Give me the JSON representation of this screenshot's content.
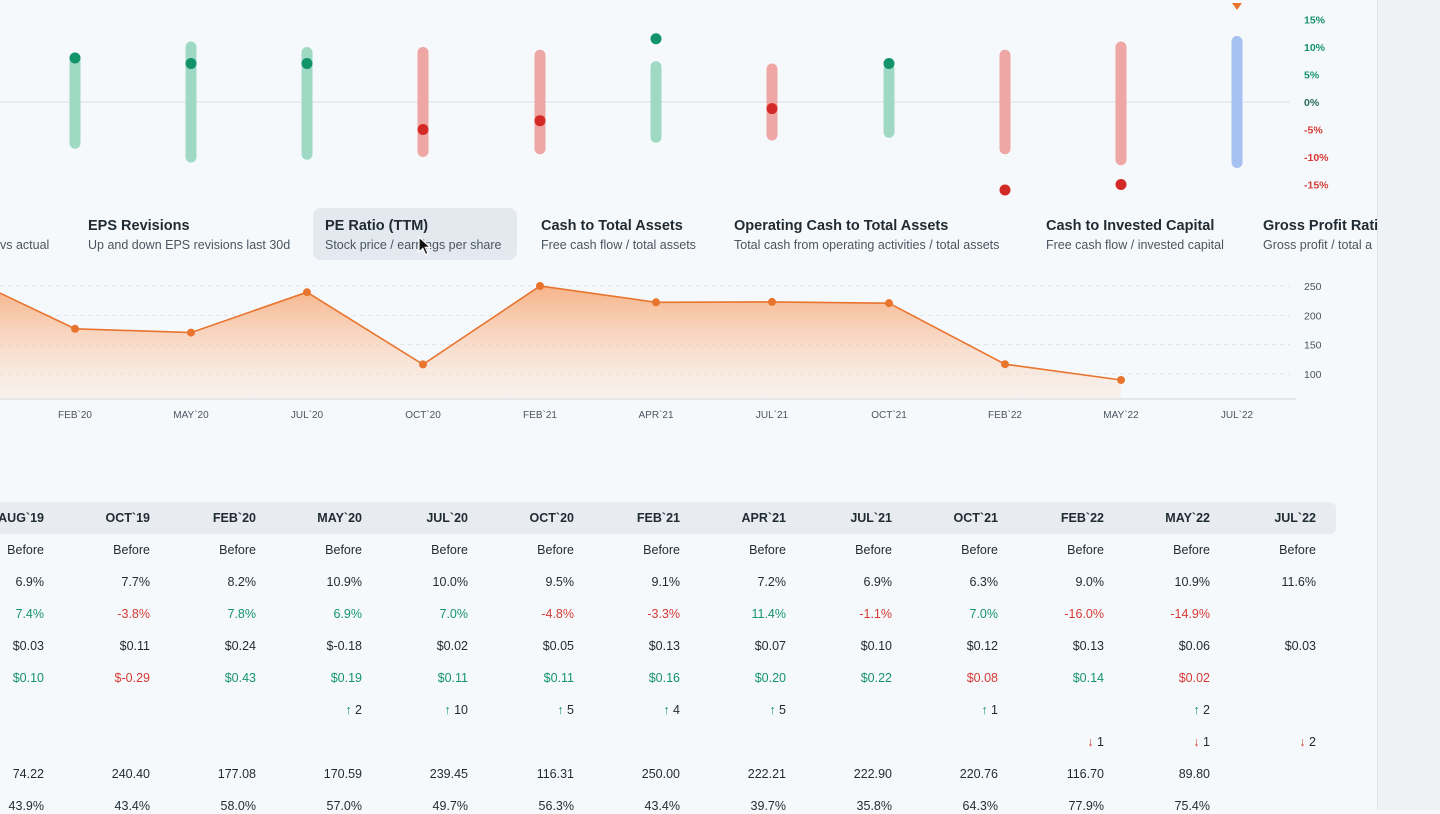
{
  "surprise_chart": {
    "y_ticks": [
      "15%",
      "10%",
      "5%",
      "0%",
      "-5%",
      "-10%",
      "-15%"
    ],
    "y_tick_values": [
      15,
      10,
      5,
      0,
      -5,
      -10,
      -15
    ],
    "bars": [
      {
        "period": "AUG`19",
        "range": [
          -7.5,
          8
        ],
        "actual": 8,
        "color": "green"
      },
      {
        "period": "OCT`19",
        "range": [
          -10,
          10
        ],
        "actual": 7,
        "color": "green"
      },
      {
        "period": "FEB`20",
        "range": [
          -9.5,
          9
        ],
        "actual": 7,
        "color": "green"
      },
      {
        "period": "MAY`20",
        "range": [
          -9,
          9
        ],
        "actual": -5,
        "color": "red"
      },
      {
        "period": "JUL`20",
        "range": [
          -8.5,
          8.5
        ],
        "actual": -3.4,
        "color": "red"
      },
      {
        "period": "OCT`20",
        "range": [
          -6.4,
          6.4
        ],
        "actual": 11.5,
        "color": "green"
      },
      {
        "period": "FEB`21",
        "range": [
          -6,
          6
        ],
        "actual": -1.2,
        "color": "red"
      },
      {
        "period": "APR`21",
        "range": [
          -5.5,
          6
        ],
        "actual": 7,
        "color": "green"
      },
      {
        "period": "JUL`21",
        "range": [
          -8.5,
          8.5
        ],
        "actual": -16,
        "color": "red"
      },
      {
        "period": "OCT`21",
        "range": [
          -10.5,
          10
        ],
        "actual": -15,
        "color": "red"
      },
      {
        "period": "FEB`22",
        "range": [
          -11,
          11
        ],
        "actual": null,
        "color": "blue"
      }
    ],
    "marker_period": "FEB`22"
  },
  "metric_tabs": [
    {
      "title": "",
      "subtitle": "vs actual",
      "active": false
    },
    {
      "title": "EPS Revisions",
      "subtitle": "Up and down EPS revisions last 30d",
      "active": false
    },
    {
      "title": "PE Ratio (TTM)",
      "subtitle": "Stock price / earnings per share",
      "active": true
    },
    {
      "title": "Cash to Total Assets",
      "subtitle": "Free cash flow / total assets",
      "active": false
    },
    {
      "title": "Operating Cash to Total Assets",
      "subtitle": "Total cash from operating activities / total assets",
      "active": false
    },
    {
      "title": "Cash to Invested Capital",
      "subtitle": "Free cash flow / invested capital",
      "active": false
    },
    {
      "title": "Gross Profit Ratio",
      "subtitle": "Gross profit / total a",
      "active": false
    }
  ],
  "chart_data": {
    "type": "area",
    "x": [
      "FEB`20",
      "MAY`20",
      "JUL`20",
      "OCT`20",
      "FEB`21",
      "APR`21",
      "JUL`21",
      "OCT`21",
      "FEB`22",
      "MAY`22",
      "JUL`22"
    ],
    "series": [
      {
        "values": [
          177.08,
          170.59,
          239.45,
          116.31,
          250.0,
          222.21,
          222.9,
          220.76,
          116.7,
          89.8,
          null
        ]
      }
    ],
    "y_ticks": [
      250,
      200,
      150,
      100
    ],
    "ylim": [
      50,
      270
    ],
    "grid": true,
    "color": "#e8742e"
  },
  "table": {
    "columns": [
      "AUG`19",
      "OCT`19",
      "FEB`20",
      "MAY`20",
      "JUL`20",
      "OCT`20",
      "FEB`21",
      "APR`21",
      "JUL`21",
      "OCT`21",
      "FEB`22",
      "MAY`22",
      "JUL`22"
    ],
    "rows": [
      {
        "type": "plain",
        "cells": [
          "Before",
          "Before",
          "Before",
          "Before",
          "Before",
          "Before",
          "Before",
          "Before",
          "Before",
          "Before",
          "Before",
          "Before",
          "Before"
        ]
      },
      {
        "type": "plain",
        "cells": [
          "6.9%",
          "7.7%",
          "8.2%",
          "10.9%",
          "10.0%",
          "9.5%",
          "9.1%",
          "7.2%",
          "6.9%",
          "6.3%",
          "9.0%",
          "10.9%",
          "11.6%"
        ]
      },
      {
        "type": "signed",
        "cells": [
          "7.4%",
          "-3.8%",
          "7.8%",
          "6.9%",
          "7.0%",
          "-4.8%",
          "-3.3%",
          "11.4%",
          "-1.1%",
          "7.0%",
          "-16.0%",
          "-14.9%",
          ""
        ],
        "colors": [
          "green",
          "red",
          "green",
          "green",
          "green",
          "red",
          "red",
          "green",
          "red",
          "green",
          "red",
          "red",
          ""
        ]
      },
      {
        "type": "plain",
        "cells": [
          "$0.03",
          "$0.11",
          "$0.24",
          "$-0.18",
          "$0.02",
          "$0.05",
          "$0.13",
          "$0.07",
          "$0.10",
          "$0.12",
          "$0.13",
          "$0.06",
          "$0.03"
        ]
      },
      {
        "type": "signed",
        "cells": [
          "$0.10",
          "$-0.29",
          "$0.43",
          "$0.19",
          "$0.11",
          "$0.11",
          "$0.16",
          "$0.20",
          "$0.22",
          "$0.08",
          "$0.14",
          "$0.02",
          ""
        ],
        "colors": [
          "green",
          "red",
          "green",
          "green",
          "green",
          "green",
          "green",
          "green",
          "green",
          "red",
          "green",
          "red",
          ""
        ]
      },
      {
        "type": "up",
        "cells": [
          "",
          "",
          "",
          "2",
          "10",
          "5",
          "4",
          "5",
          "",
          "1",
          "",
          "2",
          ""
        ]
      },
      {
        "type": "down",
        "cells": [
          "",
          "",
          "",
          "",
          "",
          "",
          "",
          "",
          "",
          "",
          "1",
          "1",
          "2"
        ]
      },
      {
        "type": "plain",
        "cells": [
          "74.22",
          "240.40",
          "177.08",
          "170.59",
          "239.45",
          "116.31",
          "250.00",
          "222.21",
          "222.90",
          "220.76",
          "116.70",
          "89.80",
          ""
        ]
      },
      {
        "type": "plain",
        "cells": [
          "43.9%",
          "43.4%",
          "58.0%",
          "57.0%",
          "49.7%",
          "56.3%",
          "43.4%",
          "39.7%",
          "35.8%",
          "64.3%",
          "77.9%",
          "75.4%",
          ""
        ]
      }
    ]
  }
}
